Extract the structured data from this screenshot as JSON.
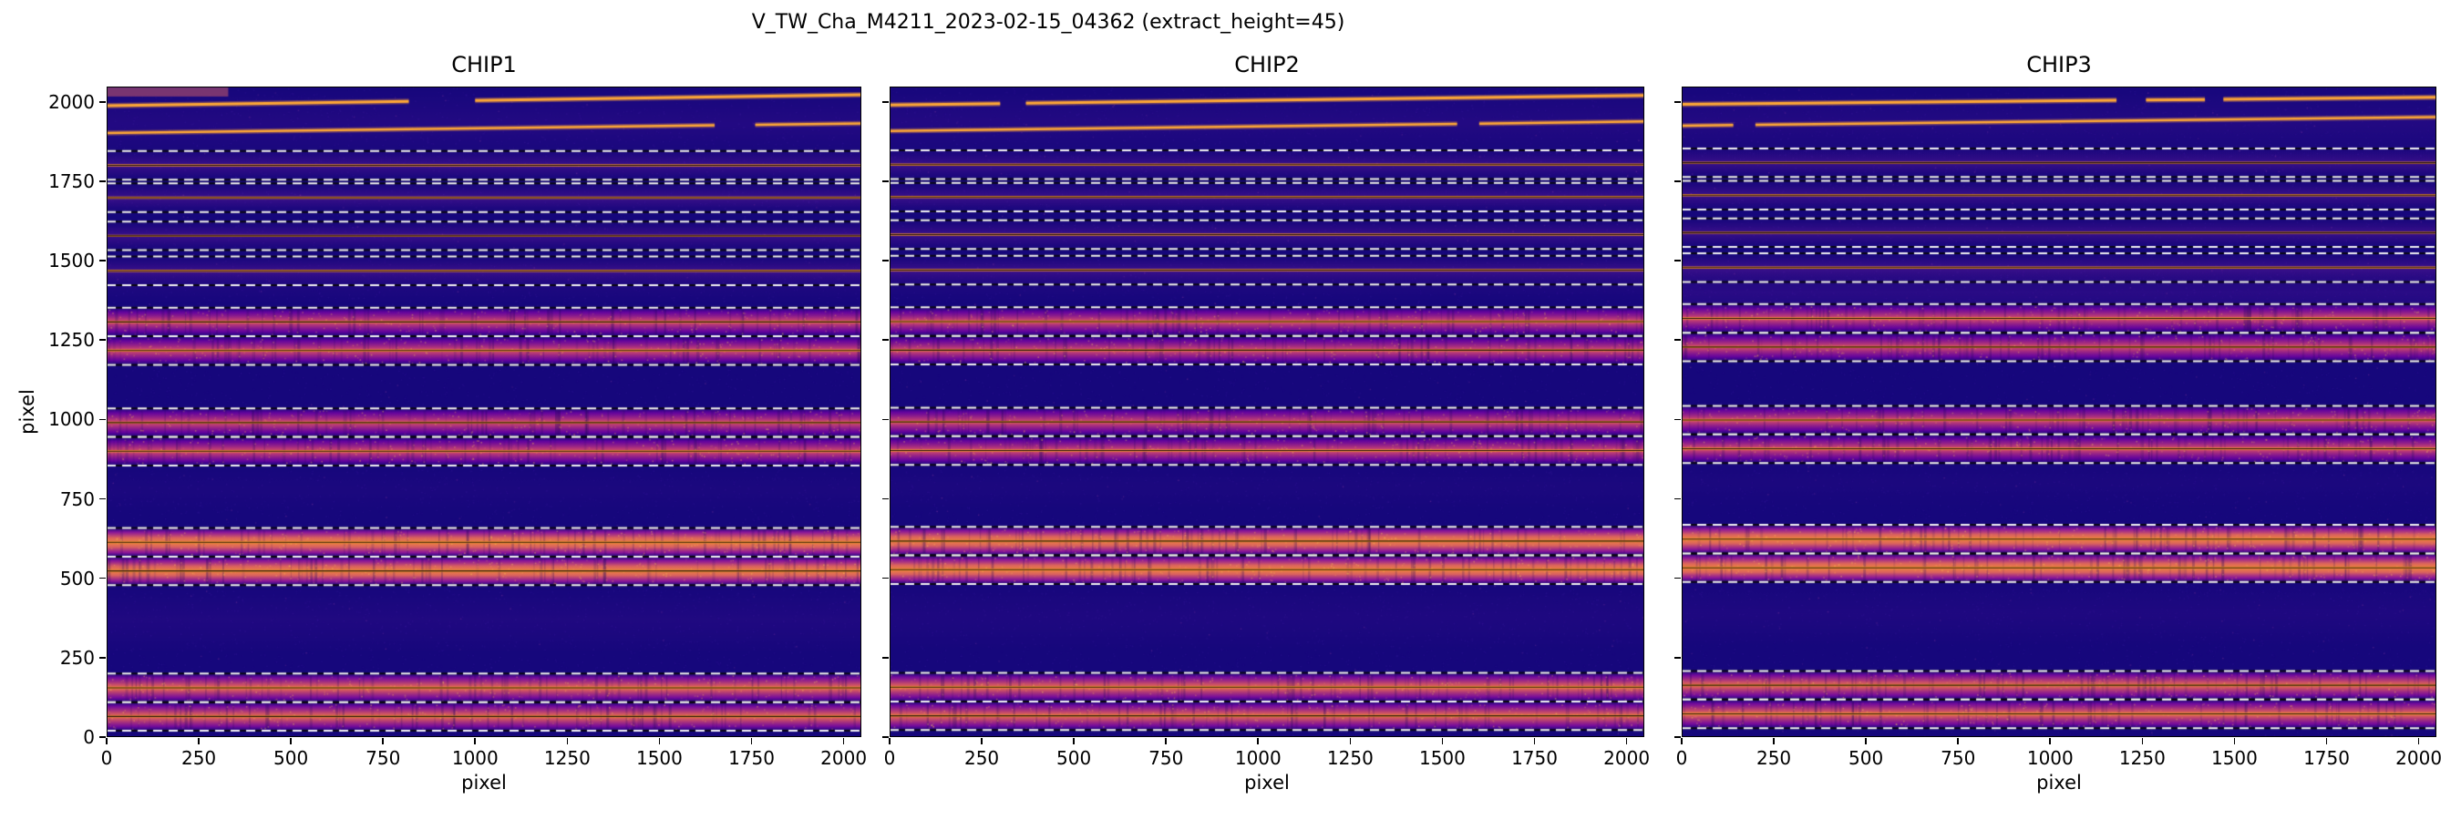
{
  "chart_data": {
    "type": "heatmap",
    "title": "V_TW_Cha_M4211_2023-02-15_04362  (extract_height=45)",
    "colormap": "plasma",
    "xlabel": "pixel",
    "ylabel": "pixel",
    "x_range": [
      0,
      2048
    ],
    "y_range": [
      0,
      2048
    ],
    "x_ticks": [
      0,
      250,
      500,
      750,
      1000,
      1250,
      1500,
      1750,
      2000
    ],
    "y_ticks": [
      0,
      250,
      500,
      750,
      1000,
      1250,
      1500,
      1750,
      2000
    ],
    "extract_height": 45,
    "background_color": "#16077c",
    "chips": [
      {
        "name": "CHIP1",
        "seed": 101,
        "orders": [
          {
            "center": 1800,
            "half": 45,
            "style": "faint"
          },
          {
            "center": 1698,
            "half": 45,
            "style": "faint"
          },
          {
            "center": 1578,
            "half": 45,
            "style": "faint"
          },
          {
            "center": 1468,
            "half": 45,
            "style": "faint"
          },
          {
            "center": 1307,
            "half": 45,
            "style": "pink"
          },
          {
            "center": 1217,
            "half": 45,
            "style": "pink"
          },
          {
            "center": 990,
            "half": 45,
            "style": "pink"
          },
          {
            "center": 900,
            "half": 45,
            "style": "pink"
          },
          {
            "center": 613,
            "half": 45,
            "style": "orange"
          },
          {
            "center": 523,
            "half": 45,
            "style": "orange"
          },
          {
            "center": 155,
            "half": 45,
            "style": "orangepink"
          },
          {
            "center": 65,
            "half": 45,
            "style": "orangepink"
          }
        ],
        "lines": [
          {
            "y0": 1988,
            "y1": 2022,
            "w": 3,
            "gaps": [
              [
                820,
                1000
              ]
            ]
          },
          {
            "y0": 1902,
            "y1": 1932,
            "w": 2.5,
            "gaps": [
              [
                1650,
                1760
              ]
            ]
          }
        ],
        "haze": [
          {
            "y": 370,
            "h": 110,
            "a": 0.1
          },
          {
            "y": 780,
            "h": 80,
            "a": 0.06
          },
          {
            "y": 1420,
            "h": 60,
            "a": 0.08
          },
          {
            "y": 1930,
            "h": 120,
            "a": 0.13
          }
        ],
        "blobs": [
          {
            "x0": 0,
            "x1": 330,
            "y": 2031,
            "h": 10,
            "color": "rgba(240,110,100,0.45)"
          }
        ]
      },
      {
        "name": "CHIP2",
        "seed": 202,
        "orders": [
          {
            "center": 1802,
            "half": 45,
            "style": "faint"
          },
          {
            "center": 1700,
            "half": 45,
            "style": "faint"
          },
          {
            "center": 1582,
            "half": 45,
            "style": "faint"
          },
          {
            "center": 1470,
            "half": 45,
            "style": "faint"
          },
          {
            "center": 1308,
            "half": 45,
            "style": "pink"
          },
          {
            "center": 1218,
            "half": 45,
            "style": "pink"
          },
          {
            "center": 992,
            "half": 45,
            "style": "pink"
          },
          {
            "center": 902,
            "half": 45,
            "style": "pink"
          },
          {
            "center": 617,
            "half": 45,
            "style": "orange"
          },
          {
            "center": 527,
            "half": 45,
            "style": "orange"
          },
          {
            "center": 157,
            "half": 45,
            "style": "orangepink"
          },
          {
            "center": 67,
            "half": 45,
            "style": "orangepink"
          }
        ],
        "lines": [
          {
            "y0": 1990,
            "y1": 2020,
            "w": 3,
            "gaps": [
              [
                300,
                370
              ]
            ]
          },
          {
            "y0": 1908,
            "y1": 1938,
            "w": 2.5,
            "gaps": [
              [
                1540,
                1600
              ]
            ]
          }
        ],
        "haze": [
          {
            "y": 380,
            "h": 110,
            "a": 0.09
          },
          {
            "y": 790,
            "h": 80,
            "a": 0.06
          },
          {
            "y": 1425,
            "h": 60,
            "a": 0.08
          },
          {
            "y": 1935,
            "h": 120,
            "a": 0.13
          }
        ],
        "blobs": []
      },
      {
        "name": "CHIP3",
        "seed": 303,
        "orders": [
          {
            "center": 1808,
            "half": 45,
            "style": "faint"
          },
          {
            "center": 1706,
            "half": 45,
            "style": "faint"
          },
          {
            "center": 1588,
            "half": 45,
            "style": "faint"
          },
          {
            "center": 1478,
            "half": 45,
            "style": "faint"
          },
          {
            "center": 1318,
            "half": 45,
            "style": "pink"
          },
          {
            "center": 1228,
            "half": 45,
            "style": "pink"
          },
          {
            "center": 998,
            "half": 45,
            "style": "pink"
          },
          {
            "center": 908,
            "half": 45,
            "style": "pink"
          },
          {
            "center": 623,
            "half": 45,
            "style": "orange"
          },
          {
            "center": 533,
            "half": 45,
            "style": "orange"
          },
          {
            "center": 163,
            "half": 45,
            "style": "orangepink"
          },
          {
            "center": 73,
            "half": 45,
            "style": "orangepink"
          }
        ],
        "lines": [
          {
            "y0": 1992,
            "y1": 2014,
            "w": 3,
            "gaps": [
              [
                1180,
                1260
              ],
              [
                1420,
                1470
              ]
            ]
          },
          {
            "y0": 1925,
            "y1": 1952,
            "w": 2.5,
            "gaps": [
              [
                140,
                200
              ]
            ]
          }
        ],
        "haze": [
          {
            "y": 390,
            "h": 110,
            "a": 0.09
          },
          {
            "y": 800,
            "h": 80,
            "a": 0.06
          },
          {
            "y": 1400,
            "h": 90,
            "a": 0.2
          },
          {
            "y": 1935,
            "h": 120,
            "a": 0.13
          }
        ],
        "blobs": []
      }
    ]
  }
}
